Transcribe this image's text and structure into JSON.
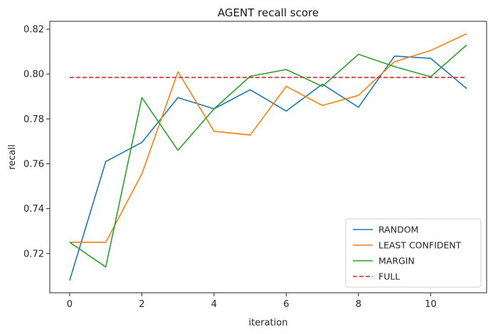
{
  "chart_data": {
    "type": "line",
    "title": "AGENT recall score",
    "xlabel": "iteration",
    "ylabel": "recall",
    "xlim": [
      -0.55,
      11.55
    ],
    "ylim": [
      0.7025,
      0.8235
    ],
    "xticks": [
      0,
      2,
      4,
      6,
      8,
      10
    ],
    "yticks": [
      0.72,
      0.74,
      0.76,
      0.78,
      0.8,
      0.82
    ],
    "ytick_labels": [
      "0.72",
      "0.74",
      "0.76",
      "0.78",
      "0.80",
      "0.82"
    ],
    "grid": false,
    "legend_position": "lower-right",
    "x": [
      0,
      1,
      2,
      3,
      4,
      5,
      6,
      7,
      8,
      9,
      10,
      11
    ],
    "series": [
      {
        "name": "RANDOM",
        "color": "#1f77b4",
        "style": "solid",
        "values": [
          0.708,
          0.761,
          0.7695,
          0.7895,
          0.7845,
          0.793,
          0.7835,
          0.7955,
          0.7852,
          0.808,
          0.807,
          0.7935
        ]
      },
      {
        "name": "LEAST CONFIDENT",
        "color": "#ff7f0e",
        "style": "solid",
        "values": [
          0.725,
          0.725,
          0.7555,
          0.801,
          0.7745,
          0.7728,
          0.7945,
          0.786,
          0.7905,
          0.8055,
          0.8105,
          0.818
        ]
      },
      {
        "name": "MARGIN",
        "color": "#2ca02c",
        "style": "solid",
        "values": [
          0.725,
          0.714,
          0.7895,
          0.766,
          0.7845,
          0.799,
          0.802,
          0.7945,
          0.8088,
          0.8033,
          0.7988,
          0.813
        ]
      },
      {
        "name": "FULL",
        "color": "#d62728",
        "style": "dashed",
        "values": [
          0.7985,
          0.7985,
          0.7985,
          0.7985,
          0.7985,
          0.7985,
          0.7985,
          0.7985,
          0.7985,
          0.7985,
          0.7985,
          0.7985
        ]
      }
    ]
  }
}
